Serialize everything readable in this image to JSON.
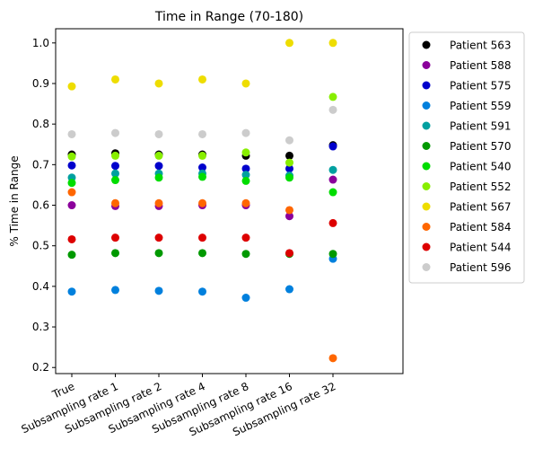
{
  "chart_data": {
    "type": "scatter",
    "title": "Time in Range (70-180)",
    "xlabel": "",
    "ylabel": "% Time in Range",
    "categories": [
      "True",
      "Subsampling rate 1",
      "Subsampling rate 2",
      "Subsampling rate 4",
      "Subsampling rate 8",
      "Subsampling rate 16",
      "Subsampling rate 32"
    ],
    "ylim": [
      0.185,
      1.035
    ],
    "yticks": [
      "0.2",
      "0.3",
      "0.4",
      "0.5",
      "0.6",
      "0.7",
      "0.8",
      "0.9",
      "1.0"
    ],
    "grid": false,
    "legend_position": "outside-right",
    "series": [
      {
        "name": "Patient 563",
        "color": "#000000",
        "values": [
          0.725,
          0.728,
          0.725,
          0.725,
          0.722,
          0.722,
          0.748
        ]
      },
      {
        "name": "Patient 588",
        "color": "#8b009b",
        "values": [
          0.6,
          0.598,
          0.598,
          0.6,
          0.6,
          0.573,
          0.663
        ]
      },
      {
        "name": "Patient 575",
        "color": "#0000cc",
        "values": [
          0.698,
          0.697,
          0.697,
          0.693,
          0.69,
          0.69,
          0.745
        ]
      },
      {
        "name": "Patient 559",
        "color": "#0080dd",
        "values": [
          0.387,
          0.391,
          0.389,
          0.387,
          0.372,
          0.393,
          0.468
        ]
      },
      {
        "name": "Patient 591",
        "color": "#00a0a0",
        "values": [
          0.668,
          0.678,
          0.678,
          0.678,
          0.675,
          0.673,
          0.687
        ]
      },
      {
        "name": "Patient 570",
        "color": "#009900",
        "values": [
          0.478,
          0.482,
          0.482,
          0.482,
          0.48,
          0.48,
          0.48
        ]
      },
      {
        "name": "Patient 540",
        "color": "#00dd00",
        "values": [
          0.655,
          0.662,
          0.668,
          0.67,
          0.66,
          0.668,
          0.632
        ]
      },
      {
        "name": "Patient 552",
        "color": "#88ee00",
        "values": [
          0.72,
          0.722,
          0.722,
          0.722,
          0.73,
          0.705,
          0.867
        ]
      },
      {
        "name": "Patient 567",
        "color": "#eedd00",
        "values": [
          0.893,
          0.91,
          0.9,
          0.91,
          0.9,
          1.0,
          1.0
        ]
      },
      {
        "name": "Patient 584",
        "color": "#ff6600",
        "values": [
          0.632,
          0.605,
          0.605,
          0.605,
          0.605,
          0.588,
          0.223
        ]
      },
      {
        "name": "Patient 544",
        "color": "#dd0000",
        "values": [
          0.516,
          0.52,
          0.52,
          0.52,
          0.52,
          0.482,
          0.556
        ]
      },
      {
        "name": "Patient 596",
        "color": "#cccccc",
        "values": [
          0.775,
          0.778,
          0.775,
          0.775,
          0.778,
          0.76,
          0.835
        ]
      }
    ]
  }
}
